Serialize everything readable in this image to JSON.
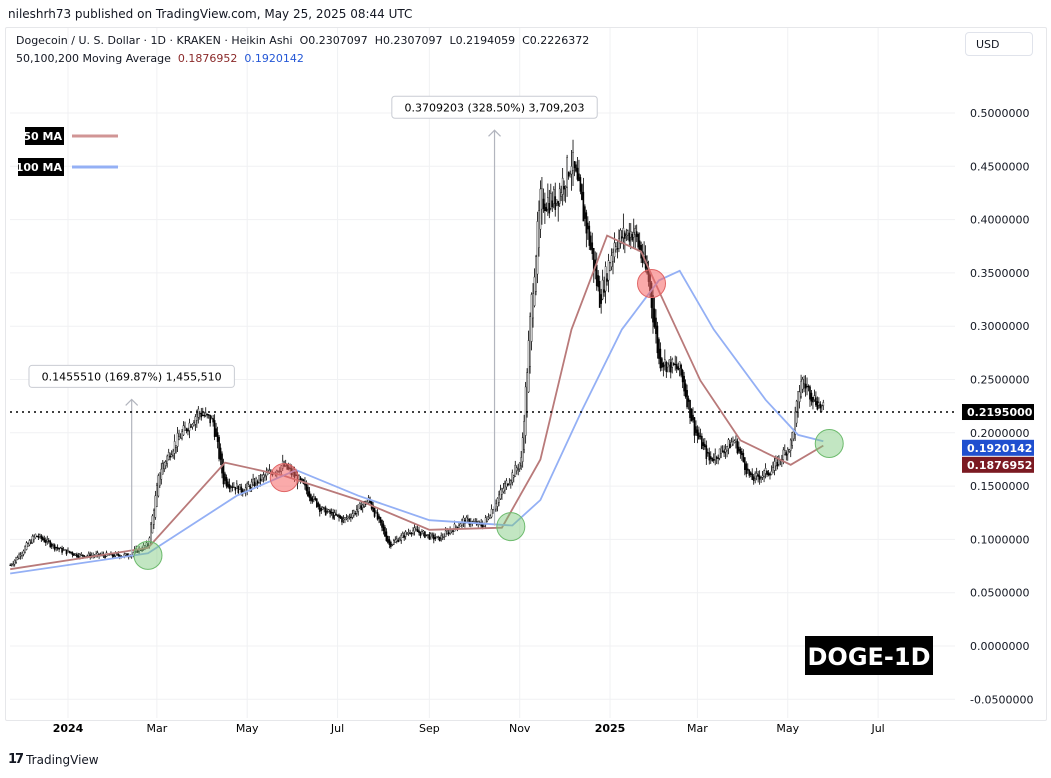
{
  "published": "nileshrh73 published on TradingView.com, May 25, 2025 08:44 UTC",
  "header": {
    "symbol": "Dogecoin / U. S. Dollar · 1D · KRAKEN · Heikin Ashi",
    "ohlc": "O0.2307097  H0.2307097  L0.2194059  C0.2226372",
    "ma_label": "50,100,200 Moving Average",
    "ma50_value": "0.1876952",
    "ma100_value": "0.1920142"
  },
  "currency_button": "USD",
  "legend": [
    {
      "label": "50 MA",
      "color": "#d19595"
    },
    {
      "label": "100 MA",
      "color": "#94b0f5"
    }
  ],
  "watermark": "DOGE-1D",
  "footer": {
    "brand": "TradingView"
  },
  "chart_data": {
    "type": "candlestick",
    "title": "Dogecoin / U. S. Dollar · 1D · KRAKEN · Heikin Ashi",
    "ylim": [
      -0.05,
      0.55
    ],
    "y_ticks": [
      "0.5000000",
      "0.4500000",
      "0.4000000",
      "0.3500000",
      "0.3000000",
      "0.2500000",
      "0.2000000",
      "0.1500000",
      "0.1000000",
      "0.0500000",
      "0.0000000",
      "-0.0500000"
    ],
    "x_ticks": [
      {
        "label": "2024",
        "date": "2024-01-01",
        "bold": true
      },
      {
        "label": "Mar",
        "date": "2024-03-01"
      },
      {
        "label": "May",
        "date": "2024-05-01"
      },
      {
        "label": "Jul",
        "date": "2024-07-01"
      },
      {
        "label": "Sep",
        "date": "2024-09-01"
      },
      {
        "label": "Nov",
        "date": "2024-11-01"
      },
      {
        "label": "2025",
        "date": "2025-01-01",
        "bold": true
      },
      {
        "label": "Mar",
        "date": "2025-03-01"
      },
      {
        "label": "May",
        "date": "2025-05-01"
      },
      {
        "label": "Jul",
        "date": "2025-07-01"
      }
    ],
    "grid": true,
    "price_path": [
      [
        "2023-11-23",
        0.076
      ],
      [
        "2023-12-10",
        0.104
      ],
      [
        "2023-12-27",
        0.09
      ],
      [
        "2024-01-09",
        0.085
      ],
      [
        "2024-02-10",
        0.085
      ],
      [
        "2024-02-24",
        0.095
      ],
      [
        "2024-03-03",
        0.165
      ],
      [
        "2024-03-13",
        0.19
      ],
      [
        "2024-03-29",
        0.22
      ],
      [
        "2024-04-08",
        0.21
      ],
      [
        "2024-04-15",
        0.155
      ],
      [
        "2024-04-28",
        0.146
      ],
      [
        "2024-05-08",
        0.155
      ],
      [
        "2024-05-25",
        0.17
      ],
      [
        "2024-06-05",
        0.155
      ],
      [
        "2024-06-20",
        0.128
      ],
      [
        "2024-07-05",
        0.118
      ],
      [
        "2024-07-22",
        0.137
      ],
      [
        "2024-08-05",
        0.095
      ],
      [
        "2024-08-20",
        0.109
      ],
      [
        "2024-09-07",
        0.1
      ],
      [
        "2024-09-24",
        0.118
      ],
      [
        "2024-10-07",
        0.113
      ],
      [
        "2024-10-20",
        0.146
      ],
      [
        "2024-11-02",
        0.174
      ],
      [
        "2024-11-09",
        0.325
      ],
      [
        "2024-11-15",
        0.418
      ],
      [
        "2024-11-25",
        0.418
      ],
      [
        "2024-12-06",
        0.456
      ],
      [
        "2024-12-18",
        0.38
      ],
      [
        "2024-12-25",
        0.325
      ],
      [
        "2025-01-04",
        0.38
      ],
      [
        "2025-01-17",
        0.39
      ],
      [
        "2025-01-27",
        0.343
      ],
      [
        "2025-02-03",
        0.268
      ],
      [
        "2025-02-17",
        0.259
      ],
      [
        "2025-02-27",
        0.203
      ],
      [
        "2025-03-09",
        0.174
      ],
      [
        "2025-03-26",
        0.193
      ],
      [
        "2025-04-06",
        0.156
      ],
      [
        "2025-04-20",
        0.165
      ],
      [
        "2025-05-03",
        0.19
      ],
      [
        "2025-05-10",
        0.25
      ],
      [
        "2025-05-20",
        0.23
      ],
      [
        "2025-05-25",
        0.222
      ]
    ],
    "series": [
      {
        "name": "50 MA",
        "color": "#b97a7a",
        "points": [
          [
            "2023-11-23",
            0.072
          ],
          [
            "2024-02-24",
            0.092
          ],
          [
            "2024-04-16",
            0.172
          ],
          [
            "2024-05-25",
            0.16
          ],
          [
            "2024-07-15",
            0.137
          ],
          [
            "2024-09-01",
            0.109
          ],
          [
            "2024-10-20",
            0.111
          ],
          [
            "2024-11-15",
            0.175
          ],
          [
            "2024-12-06",
            0.297
          ],
          [
            "2024-12-30",
            0.385
          ],
          [
            "2025-01-22",
            0.37
          ],
          [
            "2025-02-03",
            0.333
          ],
          [
            "2025-03-03",
            0.249
          ],
          [
            "2025-03-30",
            0.193
          ],
          [
            "2025-05-03",
            0.17
          ],
          [
            "2025-05-25",
            0.188
          ]
        ]
      },
      {
        "name": "100 MA",
        "color": "#94b0f5",
        "points": [
          [
            "2023-11-23",
            0.068
          ],
          [
            "2024-02-24",
            0.087
          ],
          [
            "2024-04-24",
            0.141
          ],
          [
            "2024-06-03",
            0.165
          ],
          [
            "2024-07-15",
            0.141
          ],
          [
            "2024-09-01",
            0.118
          ],
          [
            "2024-10-27",
            0.113
          ],
          [
            "2024-11-15",
            0.137
          ],
          [
            "2024-12-13",
            0.221
          ],
          [
            "2025-01-09",
            0.297
          ],
          [
            "2025-02-03",
            0.343
          ],
          [
            "2025-02-17",
            0.352
          ],
          [
            "2025-03-12",
            0.297
          ],
          [
            "2025-04-16",
            0.231
          ],
          [
            "2025-05-08",
            0.198
          ],
          [
            "2025-05-25",
            0.192
          ]
        ]
      }
    ],
    "crosses": [
      {
        "date": "2024-02-24",
        "value": 0.085,
        "kind": "golden"
      },
      {
        "date": "2024-05-26",
        "value": 0.158,
        "kind": "death"
      },
      {
        "date": "2024-10-26",
        "value": 0.112,
        "kind": "golden"
      },
      {
        "date": "2025-01-29",
        "value": 0.34,
        "kind": "death"
      },
      {
        "date": "2025-05-29",
        "value": 0.19,
        "kind": "golden"
      }
    ],
    "measurements": [
      {
        "label": "0.1455510 (169.87%) 1,455,510",
        "date": "2024-02-13",
        "from": 0.0857,
        "to": 0.2313
      },
      {
        "label": "0.3709203 (328.50%) 3,709,203",
        "date": "2024-10-15",
        "from": 0.1129,
        "to": 0.4838
      }
    ],
    "last_price": {
      "label": "0.2195000",
      "value": 0.2195,
      "color": "#000000"
    },
    "ma_badges": [
      {
        "label": "0.1920142",
        "value": 0.1920142,
        "color": "#1f4fcf"
      },
      {
        "label": "0.1876952",
        "value": 0.1876952,
        "color": "#7b1a22"
      }
    ]
  }
}
